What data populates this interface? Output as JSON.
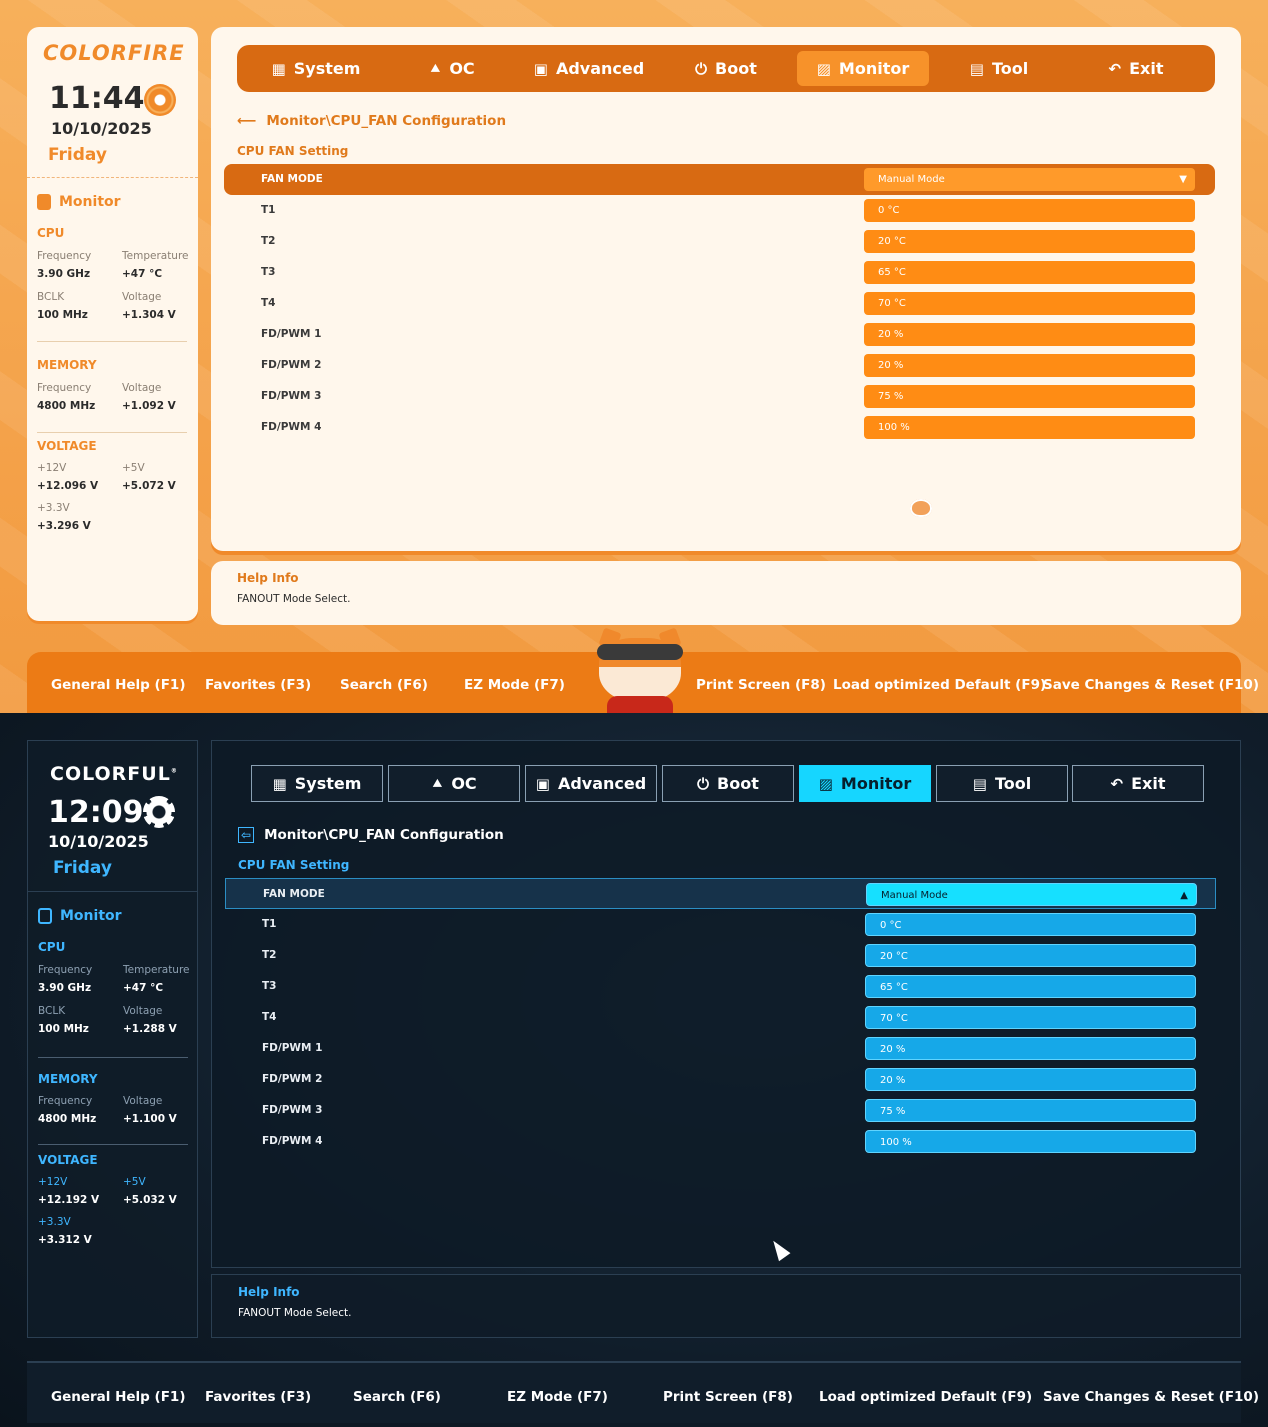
{
  "tabs": [
    {
      "label": "System",
      "icon": "grid-icon"
    },
    {
      "label": "OC",
      "icon": "rocket-icon"
    },
    {
      "label": "Advanced",
      "icon": "chip-icon"
    },
    {
      "label": "Boot",
      "icon": "power-icon"
    },
    {
      "label": "Monitor",
      "icon": "monitor-icon"
    },
    {
      "label": "Tool",
      "icon": "toolbox-icon"
    },
    {
      "label": "Exit",
      "icon": "back-arrow-icon"
    }
  ],
  "breadcrumb": "Monitor\\CPU_FAN Configuration",
  "section_title": "CPU FAN Setting",
  "settings": [
    {
      "label": "FAN MODE",
      "value": "Manual Mode"
    },
    {
      "label": "T1",
      "value": "0 °C"
    },
    {
      "label": "T2",
      "value": "20 °C"
    },
    {
      "label": "T3",
      "value": "65 °C"
    },
    {
      "label": "T4",
      "value": "70 °C"
    },
    {
      "label": "FD/PWM 1",
      "value": "20 %"
    },
    {
      "label": "FD/PWM 2",
      "value": "20 %"
    },
    {
      "label": "FD/PWM 3",
      "value": "75 %"
    },
    {
      "label": "FD/PWM 4",
      "value": "100 %"
    }
  ],
  "help": {
    "title": "Help Info",
    "text": "FANOUT Mode Select."
  },
  "footer": [
    "General Help (F1)",
    "Favorites (F3)",
    "Search (F6)",
    "EZ Mode (F7)",
    "Print Screen (F8)",
    "Load optimized Default (F9)",
    "Save Changes & Reset (F10)"
  ],
  "sidebar_labels": {
    "monitor": "Monitor",
    "cpu": "CPU",
    "frequency": "Frequency",
    "temperature": "Temperature",
    "bclk": "BCLK",
    "voltage": "Voltage",
    "memory": "MEMORY",
    "voltage_section": "VOLTAGE",
    "v12": "+12V",
    "v5": "+5V",
    "v33": "+3.3V"
  },
  "top": {
    "logo": "COLORFIRE",
    "time": "11:44",
    "date": "10/10/2025",
    "day": "Friday",
    "cpu_freq": "3.90 GHz",
    "cpu_temp": "+47 °C",
    "bclk": "100 MHz",
    "cpu_voltage": "+1.304 V",
    "mem_freq": "4800 MHz",
    "mem_voltage": "+1.092 V",
    "v12": "+12.096 V",
    "v5": "+5.072 V",
    "v33": "+3.296 V",
    "accent_color": "#f08a2a"
  },
  "bottom": {
    "logo": "COLORFUL",
    "logo_mark": "®",
    "time": "12:09",
    "date": "10/10/2025",
    "day": "Friday",
    "cpu_freq": "3.90 GHz",
    "cpu_temp": "+47 °C",
    "bclk": "100 MHz",
    "cpu_voltage": "+1.288 V",
    "mem_freq": "4800 MHz",
    "mem_voltage": "+1.100 V",
    "v12": "+12.192 V",
    "v5": "+5.032 V",
    "v33": "+3.312 V",
    "accent_color": "#16d6ff"
  }
}
